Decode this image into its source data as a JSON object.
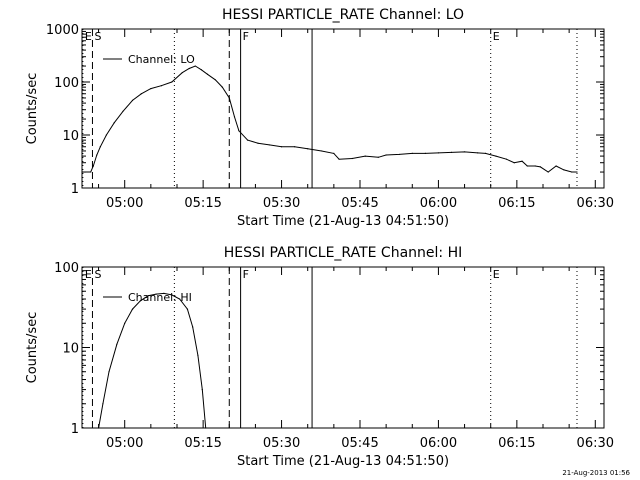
{
  "footer_stamp": "21-Aug-2013 01:56",
  "chart_data": [
    {
      "type": "line",
      "title": "HESSI PARTICLE_RATE Channel: LO",
      "xlabel": "Start Time (21-Aug-13 04:51:50)",
      "ylabel": "Counts/sec",
      "y_scale": "log",
      "ylim": [
        1,
        1000
      ],
      "y_ticks": [
        "1",
        "10",
        "100",
        "1000"
      ],
      "xlim": [
        "04:51:50",
        "06:31:40"
      ],
      "x_ticks": [
        "05:00",
        "05:15",
        "05:30",
        "05:45",
        "06:00",
        "06:15",
        "06:30"
      ],
      "legend": {
        "position": "top-left",
        "entries": [
          "Channel: LO"
        ]
      },
      "markers": [
        {
          "time": "04:52:00",
          "style": "dotted",
          "label": "E"
        },
        {
          "time": "04:53:50",
          "style": "dashed",
          "label": "S"
        },
        {
          "time": "05:09:30",
          "style": "dotted",
          "label": ""
        },
        {
          "time": "05:20:00",
          "style": "dashed",
          "label": ""
        },
        {
          "time": "05:22:10",
          "style": "solid",
          "label": "F"
        },
        {
          "time": "05:35:50",
          "style": "solid",
          "label": ""
        },
        {
          "time": "06:10:00",
          "style": "dotted",
          "label": "E"
        },
        {
          "time": "06:26:30",
          "style": "dotted",
          "label": ""
        }
      ],
      "series": [
        {
          "name": "Channel: LO",
          "x": [
            "04:51:50",
            "04:53:30",
            "04:54:00",
            "04:54:40",
            "04:55:20",
            "04:56:30",
            "04:58:00",
            "04:59:40",
            "05:01:30",
            "05:03:10",
            "05:05:00",
            "05:07:00",
            "05:09:00",
            "05:11:00",
            "05:12:20",
            "05:13:30",
            "05:14:40",
            "05:15:50",
            "05:17:20",
            "05:18:40",
            "05:20:00",
            "05:21:00",
            "05:21:50",
            "05:23:30",
            "05:25:30",
            "05:27:40",
            "05:30:00",
            "05:32:30",
            "05:35:00",
            "05:37:40",
            "05:40:00",
            "05:41:00",
            "05:43:30",
            "05:46:00",
            "05:48:30",
            "05:50:00",
            "05:52:30",
            "05:55:00",
            "05:57:30",
            "06:00:00",
            "06:02:30",
            "06:05:00",
            "06:07:30",
            "06:09:00",
            "06:11:00",
            "06:13:00",
            "06:14:30",
            "06:16:00",
            "06:17:00",
            "06:18:30",
            "06:19:30",
            "06:21:00",
            "06:22:30",
            "06:24:00",
            "06:25:30",
            "06:26:30"
          ],
          "y": [
            2,
            2,
            2.6,
            4.2,
            6,
            10,
            17,
            28,
            45,
            60,
            75,
            85,
            100,
            150,
            180,
            200,
            170,
            140,
            110,
            80,
            50,
            22,
            12,
            8,
            7,
            6.5,
            6,
            6,
            5.5,
            5,
            4.5,
            3.5,
            3.6,
            4,
            3.8,
            4.2,
            4.3,
            4.5,
            4.5,
            4.6,
            4.7,
            4.8,
            4.6,
            4.5,
            4,
            3.5,
            3,
            3.2,
            2.6,
            2.6,
            2.5,
            2,
            2.6,
            2.2,
            2,
            2
          ]
        }
      ]
    },
    {
      "type": "line",
      "title": "HESSI PARTICLE_RATE Channel: HI",
      "xlabel": "Start Time (21-Aug-13 04:51:50)",
      "ylabel": "Counts/sec",
      "y_scale": "log",
      "ylim": [
        1,
        100
      ],
      "y_ticks": [
        "1",
        "10",
        "100"
      ],
      "xlim": [
        "04:51:50",
        "06:31:40"
      ],
      "x_ticks": [
        "05:00",
        "05:15",
        "05:30",
        "05:45",
        "06:00",
        "06:15",
        "06:30"
      ],
      "legend": {
        "position": "top-left",
        "entries": [
          "Channel: HI"
        ]
      },
      "markers": [
        {
          "time": "04:52:00",
          "style": "dotted",
          "label": "E"
        },
        {
          "time": "04:53:50",
          "style": "dashed",
          "label": "S"
        },
        {
          "time": "05:09:30",
          "style": "dotted",
          "label": ""
        },
        {
          "time": "05:20:00",
          "style": "dashed",
          "label": ""
        },
        {
          "time": "05:22:10",
          "style": "solid",
          "label": "F"
        },
        {
          "time": "05:35:50",
          "style": "solid",
          "label": ""
        },
        {
          "time": "06:10:00",
          "style": "dotted",
          "label": "E"
        },
        {
          "time": "06:26:30",
          "style": "dotted",
          "label": ""
        }
      ],
      "series": [
        {
          "name": "Channel: HI",
          "x": [
            "04:55:00",
            "04:55:50",
            "04:57:00",
            "04:58:30",
            "05:00:00",
            "05:01:30",
            "05:03:00",
            "05:04:30",
            "05:06:00",
            "05:07:30",
            "05:09:00",
            "05:10:30",
            "05:12:00",
            "05:13:00",
            "05:14:00",
            "05:14:50",
            "05:15:30"
          ],
          "y": [
            1,
            2,
            5,
            11,
            20,
            30,
            38,
            44,
            46,
            47,
            45,
            40,
            30,
            18,
            8,
            3,
            1
          ]
        }
      ]
    }
  ]
}
